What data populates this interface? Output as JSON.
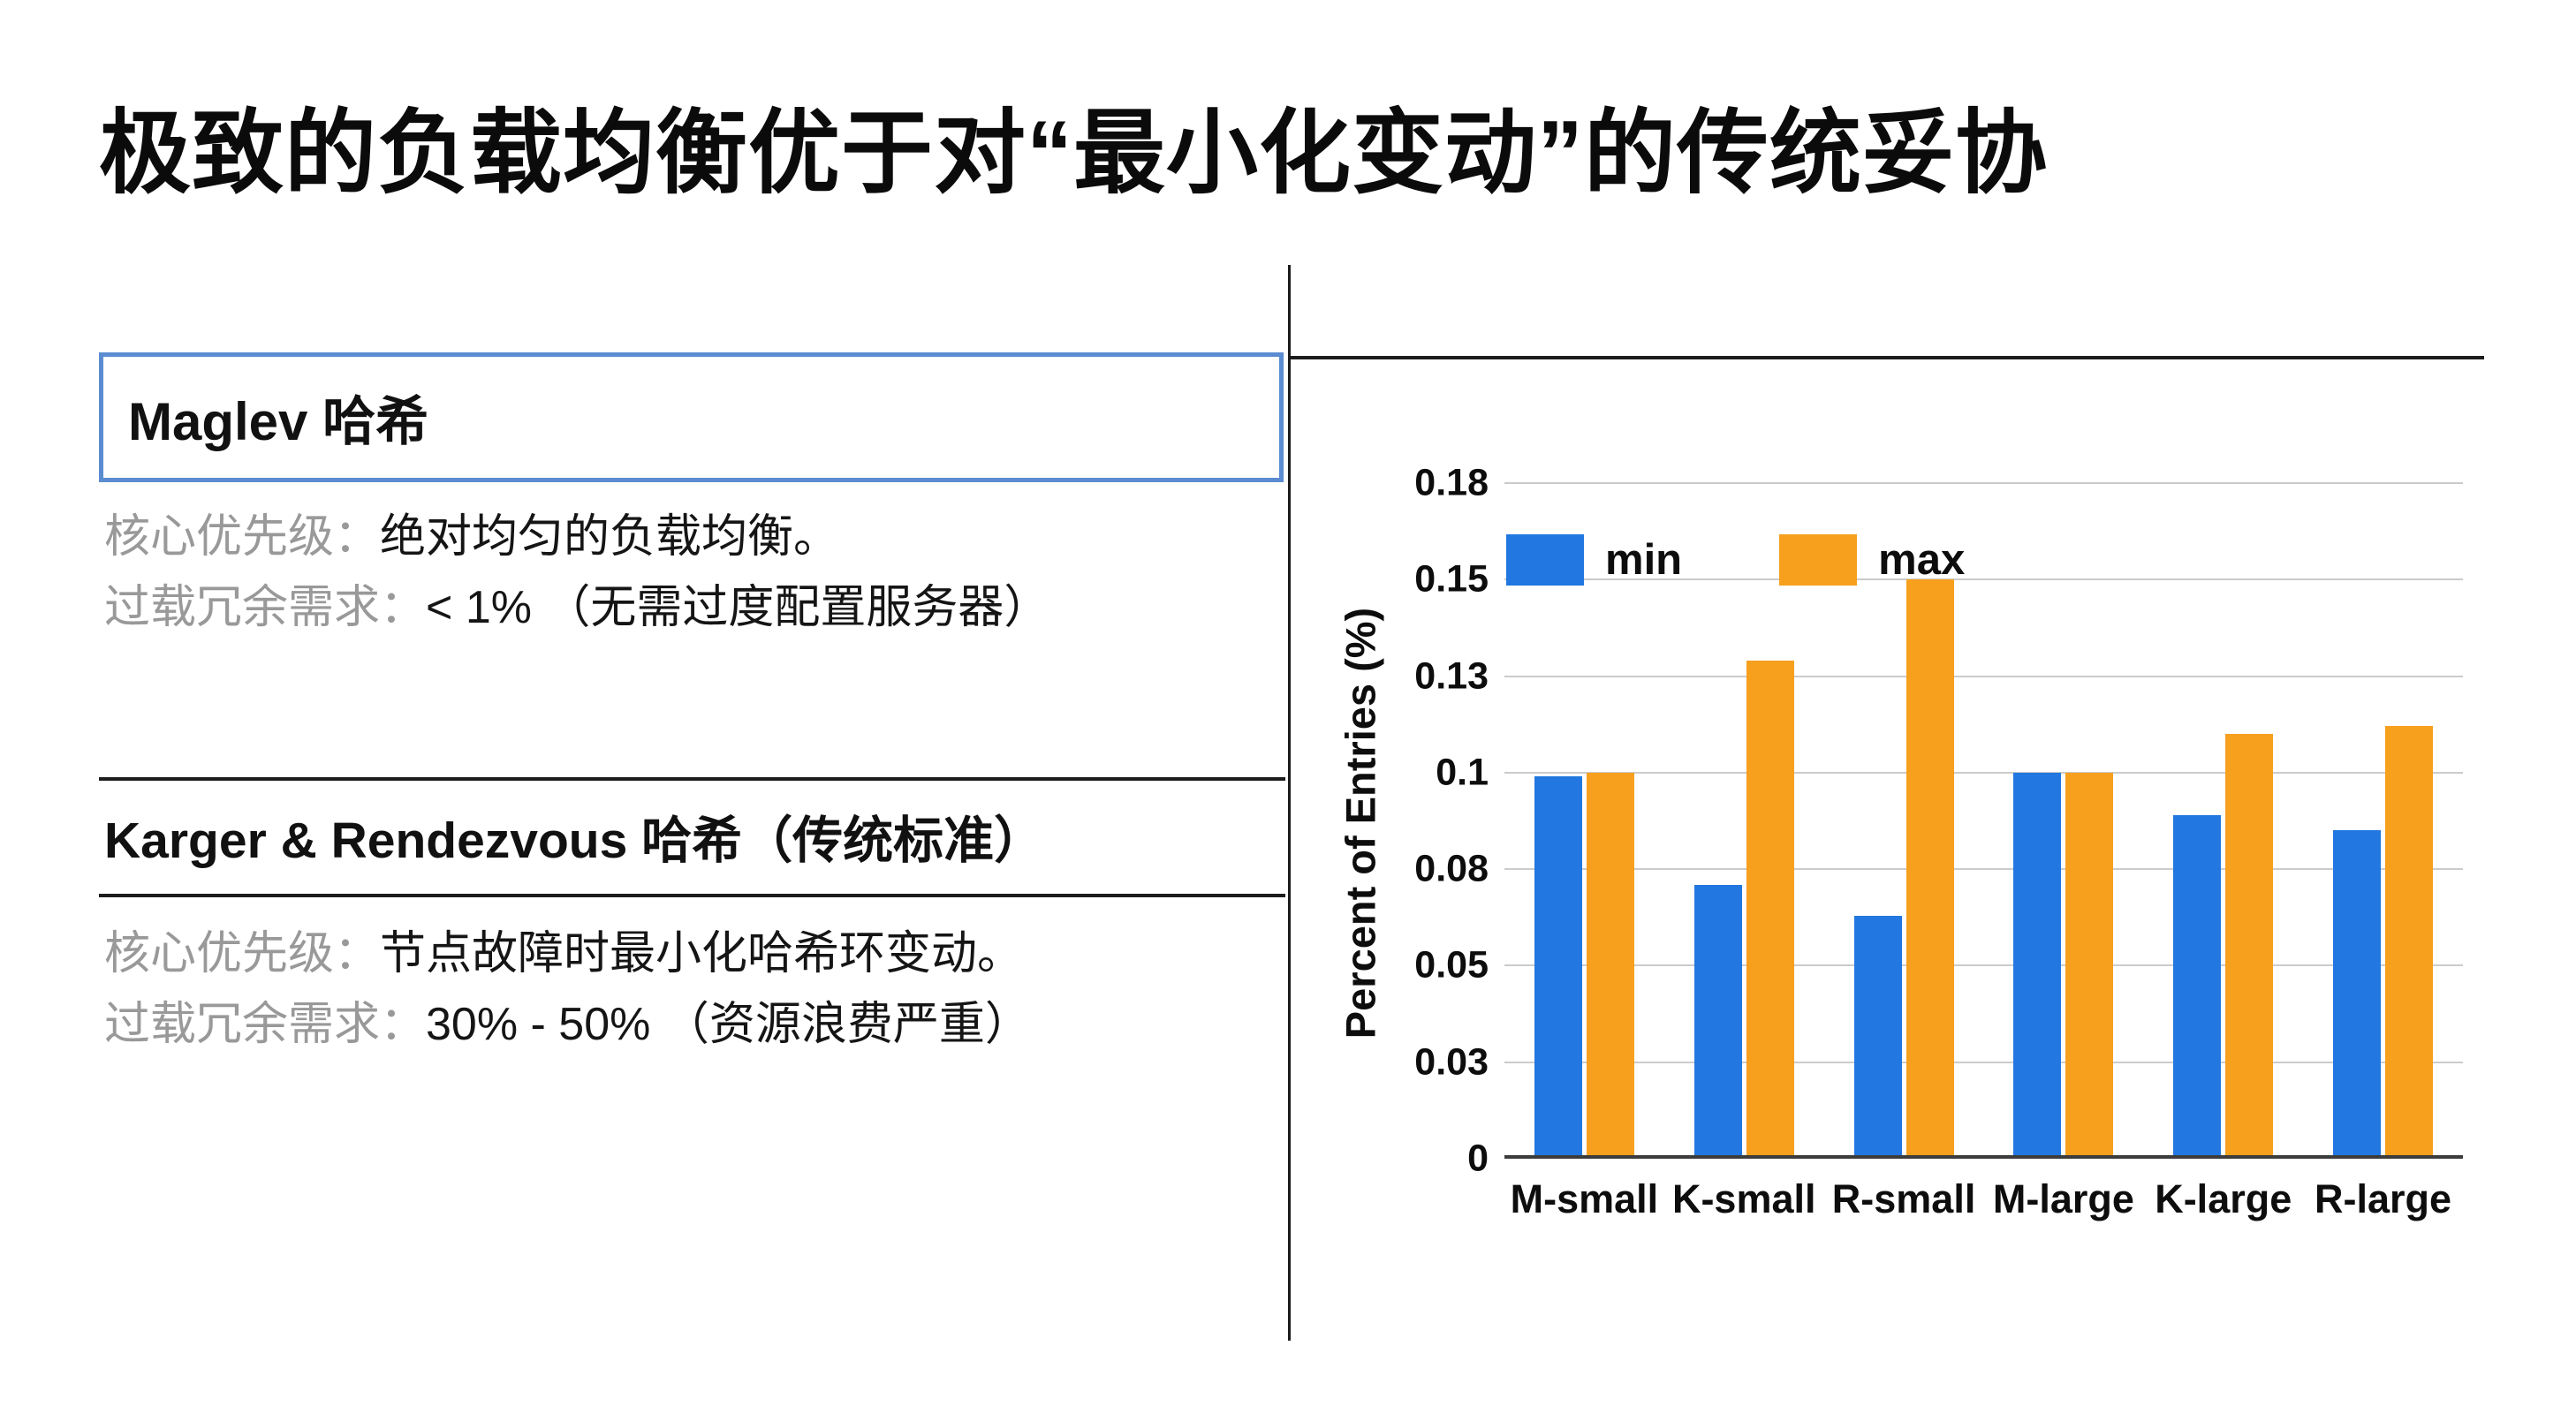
{
  "title": "极致的负载均衡优于对“最小化变动”的传统妥协",
  "left": {
    "maglev": {
      "header": "Maglev 哈希",
      "priority_label": "核心优先级：",
      "priority_value": "绝对均匀的负载均衡。",
      "overhead_label": "过载冗余需求：",
      "overhead_value": "< 1% （无需过度配置服务器）"
    },
    "karger": {
      "header": "Karger & Rendezvous 哈希（传统标准）",
      "priority_label": "核心优先级：",
      "priority_value": "节点故障时最小化哈希环变动。",
      "overhead_label": "过载冗余需求：",
      "overhead_value": "30% - 50% （资源浪费严重）"
    }
  },
  "chart_data": {
    "type": "bar",
    "title": "",
    "ylabel": "Percent of Entries (%)",
    "categories": [
      "M-small",
      "K-small",
      "R-small",
      "M-large",
      "K-large",
      "R-large"
    ],
    "series": [
      {
        "name": "min",
        "color": "#2277e0",
        "values": [
          0.099,
          0.071,
          0.063,
          0.1,
          0.089,
          0.085
        ]
      },
      {
        "name": "max",
        "color": "#f6a01e",
        "values": [
          0.1,
          0.129,
          0.15,
          0.1,
          0.11,
          0.112
        ]
      }
    ],
    "ylim": [
      0,
      0.175
    ],
    "ytick_values": [
      0,
      0.025,
      0.05,
      0.075,
      0.1,
      0.125,
      0.15,
      0.175
    ],
    "ytick_labels": [
      "0",
      "0.03",
      "0.05",
      "0.08",
      "0.1",
      "0.13",
      "0.15",
      "0.18"
    ],
    "grid": true,
    "legend_position": "top-left-inside",
    "colors": {
      "gridline": "#cbcbcb",
      "axis": "#3c3c3c",
      "text": "#0d0d0d"
    }
  }
}
